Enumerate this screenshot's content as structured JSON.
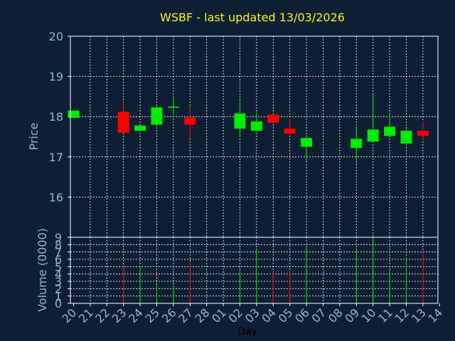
{
  "chart_data": [
    {
      "type": "candlestick",
      "title": "WSBF - last updated 13/03/2026",
      "ylabel": "Price",
      "ylim": [
        15,
        20
      ],
      "yticks": [
        16,
        17,
        18,
        19,
        20
      ],
      "grid": true,
      "categories": [
        "20",
        "21",
        "22",
        "23",
        "24",
        "25",
        "26",
        "27",
        "28",
        "01",
        "02",
        "03",
        "04",
        "05",
        "06",
        "07",
        "08",
        "09",
        "10",
        "11",
        "12",
        "13",
        "14"
      ],
      "candles": [
        {
          "x": "20",
          "open": 17.97,
          "high": 18.15,
          "low": 17.97,
          "close": 18.15
        },
        {
          "x": "23",
          "open": 18.12,
          "high": 18.35,
          "low": 17.6,
          "close": 17.6
        },
        {
          "x": "24",
          "open": 17.65,
          "high": 17.78,
          "low": 17.65,
          "close": 17.78
        },
        {
          "x": "25",
          "open": 17.8,
          "high": 18.25,
          "low": 17.8,
          "close": 18.23
        },
        {
          "x": "26",
          "open": 18.23,
          "high": 18.52,
          "low": 18.05,
          "close": 18.25
        },
        {
          "x": "27",
          "open": 17.98,
          "high": 18.22,
          "low": 17.45,
          "close": 17.8
        },
        {
          "x": "02",
          "open": 17.7,
          "high": 18.4,
          "low": 17.5,
          "close": 18.08
        },
        {
          "x": "03",
          "open": 17.65,
          "high": 18.1,
          "low": 17.62,
          "close": 17.88
        },
        {
          "x": "04",
          "open": 18.05,
          "high": 18.05,
          "low": 17.83,
          "close": 17.85
        },
        {
          "x": "05",
          "open": 17.7,
          "high": 17.95,
          "low": 17.55,
          "close": 17.58
        },
        {
          "x": "06",
          "open": 17.25,
          "high": 17.47,
          "low": 16.88,
          "close": 17.47
        },
        {
          "x": "09",
          "open": 17.22,
          "high": 17.75,
          "low": 16.83,
          "close": 17.45
        },
        {
          "x": "10",
          "open": 17.38,
          "high": 18.55,
          "low": 17.38,
          "close": 17.68
        },
        {
          "x": "11",
          "open": 17.52,
          "high": 18.1,
          "low": 17.52,
          "close": 17.75
        },
        {
          "x": "12",
          "open": 17.33,
          "high": 17.7,
          "low": 17.33,
          "close": 17.65
        },
        {
          "x": "13",
          "open": 17.65,
          "high": 17.88,
          "low": 17.43,
          "close": 17.52
        }
      ],
      "colors": {
        "up": "#00ee00",
        "down": "#ff0000",
        "background": "#0f1f33",
        "plot_border": "#ffffff",
        "grid": "#ffffff",
        "title": "#f5f51e",
        "text": "#8fb4d8"
      }
    },
    {
      "type": "bar",
      "ylabel": "Volume (0000)",
      "xlabel": "Day",
      "ylim": [
        0,
        9
      ],
      "yticks": [
        0,
        1,
        2,
        3,
        4,
        5,
        6,
        7,
        8,
        9
      ],
      "grid": true,
      "categories": [
        "20",
        "21",
        "22",
        "23",
        "24",
        "25",
        "26",
        "27",
        "28",
        "01",
        "02",
        "03",
        "04",
        "05",
        "06",
        "07",
        "08",
        "09",
        "10",
        "11",
        "12",
        "13",
        "14"
      ],
      "bars": [
        {
          "x": "20",
          "value": 0,
          "direction": "up"
        },
        {
          "x": "23",
          "value": 5.3,
          "direction": "down"
        },
        {
          "x": "24",
          "value": 5.1,
          "direction": "up"
        },
        {
          "x": "25",
          "value": 2.7,
          "direction": "up"
        },
        {
          "x": "26",
          "value": 2.5,
          "direction": "up"
        },
        {
          "x": "27",
          "value": 5.7,
          "direction": "down"
        },
        {
          "x": "02",
          "value": 4.0,
          "direction": "up"
        },
        {
          "x": "03",
          "value": 7.3,
          "direction": "up"
        },
        {
          "x": "04",
          "value": 4.3,
          "direction": "down"
        },
        {
          "x": "05",
          "value": 4.3,
          "direction": "down"
        },
        {
          "x": "06",
          "value": 7.6,
          "direction": "up"
        },
        {
          "x": "09",
          "value": 7.3,
          "direction": "up"
        },
        {
          "x": "10",
          "value": 9.0,
          "direction": "up"
        },
        {
          "x": "11",
          "value": 4.5,
          "direction": "up"
        },
        {
          "x": "12",
          "value": 6.3,
          "direction": "up"
        },
        {
          "x": "13",
          "value": 7.0,
          "direction": "down"
        }
      ]
    }
  ]
}
